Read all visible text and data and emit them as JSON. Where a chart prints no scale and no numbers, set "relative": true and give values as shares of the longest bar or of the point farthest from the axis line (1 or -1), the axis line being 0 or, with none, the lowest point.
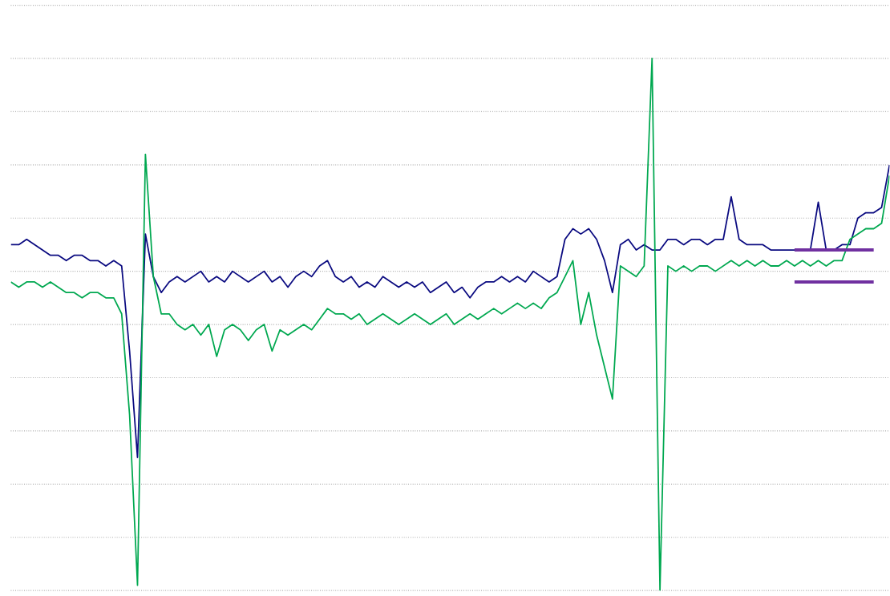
{
  "chart_data": {
    "type": "line",
    "relative": true,
    "grid": "y",
    "tick_labels": false,
    "categories": [
      null,
      null,
      null,
      null,
      null,
      null,
      null,
      null,
      null,
      null,
      null,
      null,
      null,
      null,
      null,
      null,
      null,
      null,
      null,
      null,
      null,
      null,
      null,
      null,
      null,
      null,
      null,
      null,
      null,
      null,
      null,
      null,
      null,
      null,
      null,
      null,
      null,
      null,
      null,
      null,
      null,
      null,
      null,
      null,
      null,
      null,
      null,
      null,
      null,
      null,
      null,
      null,
      null,
      null,
      null,
      null,
      null,
      null,
      null,
      null,
      null,
      null,
      null,
      null,
      null,
      null,
      null,
      null,
      null,
      null,
      null,
      null,
      null,
      null,
      null,
      null,
      null,
      null,
      null,
      null,
      null,
      null,
      null,
      null,
      null,
      null,
      null,
      null,
      null,
      null,
      null,
      null,
      null,
      null,
      null,
      null,
      null,
      null,
      null,
      null,
      null,
      null,
      null,
      null,
      null,
      null,
      null,
      null,
      null,
      null,
      null,
      null
    ],
    "series": [
      {
        "color": "#0a0a80",
        "values": [
          0.65,
          0.65,
          0.66,
          0.65,
          0.64,
          0.63,
          0.63,
          0.62,
          0.63,
          0.63,
          0.62,
          0.62,
          0.61,
          0.62,
          0.61,
          0.45,
          0.25,
          0.67,
          0.59,
          0.56,
          0.58,
          0.59,
          0.58,
          0.59,
          0.6,
          0.58,
          0.59,
          0.58,
          0.6,
          0.59,
          0.58,
          0.59,
          0.6,
          0.58,
          0.59,
          0.57,
          0.59,
          0.6,
          0.59,
          0.61,
          0.62,
          0.59,
          0.58,
          0.59,
          0.57,
          0.58,
          0.57,
          0.59,
          0.58,
          0.57,
          0.58,
          0.57,
          0.58,
          0.56,
          0.57,
          0.58,
          0.56,
          0.57,
          0.55,
          0.57,
          0.58,
          0.58,
          0.59,
          0.58,
          0.59,
          0.58,
          0.6,
          0.59,
          0.58,
          0.59,
          0.66,
          0.68,
          0.67,
          0.68,
          0.66,
          0.62,
          0.56,
          0.65,
          0.66,
          0.64,
          0.65,
          0.64,
          0.64,
          0.66,
          0.66,
          0.65,
          0.66,
          0.66,
          0.65,
          0.66,
          0.66,
          0.74,
          0.66,
          0.65,
          0.65,
          0.65,
          0.64,
          0.64,
          0.64,
          0.64,
          0.64,
          0.64,
          0.73,
          0.64,
          0.64,
          0.65,
          0.65,
          0.7,
          0.71,
          0.71,
          0.72,
          0.8
        ]
      },
      {
        "color": "#00a850",
        "values": [
          0.58,
          0.57,
          0.58,
          0.58,
          0.57,
          0.58,
          0.57,
          0.56,
          0.56,
          0.55,
          0.56,
          0.56,
          0.55,
          0.55,
          0.52,
          0.33,
          0.01,
          0.82,
          0.59,
          0.52,
          0.52,
          0.5,
          0.49,
          0.5,
          0.48,
          0.5,
          0.44,
          0.49,
          0.5,
          0.49,
          0.47,
          0.49,
          0.5,
          0.45,
          0.49,
          0.48,
          0.49,
          0.5,
          0.49,
          0.51,
          0.53,
          0.52,
          0.52,
          0.51,
          0.52,
          0.5,
          0.51,
          0.52,
          0.51,
          0.5,
          0.51,
          0.52,
          0.51,
          0.5,
          0.51,
          0.52,
          0.5,
          0.51,
          0.52,
          0.51,
          0.52,
          0.53,
          0.52,
          0.53,
          0.54,
          0.53,
          0.54,
          0.53,
          0.55,
          0.56,
          0.59,
          0.62,
          0.5,
          0.56,
          0.48,
          0.42,
          0.36,
          0.61,
          0.6,
          0.59,
          0.61,
          1.0,
          0.0,
          0.61,
          0.6,
          0.61,
          0.6,
          0.61,
          0.61,
          0.6,
          0.61,
          0.62,
          0.61,
          0.62,
          0.61,
          0.62,
          0.61,
          0.61,
          0.62,
          0.61,
          0.62,
          0.61,
          0.62,
          0.61,
          0.62,
          0.62,
          0.66,
          0.67,
          0.68,
          0.68,
          0.69,
          0.78
        ]
      },
      {
        "color": "#7030a0",
        "values": [
          null,
          null,
          null,
          null,
          null,
          null,
          null,
          null,
          null,
          null,
          null,
          null,
          null,
          null,
          null,
          null,
          null,
          null,
          null,
          null,
          null,
          null,
          null,
          null,
          null,
          null,
          null,
          null,
          null,
          null,
          null,
          null,
          null,
          null,
          null,
          null,
          null,
          null,
          null,
          null,
          null,
          null,
          null,
          null,
          null,
          null,
          null,
          null,
          null,
          null,
          null,
          null,
          null,
          null,
          null,
          null,
          null,
          null,
          null,
          null,
          null,
          null,
          null,
          null,
          null,
          null,
          null,
          null,
          null,
          null,
          null,
          null,
          null,
          null,
          null,
          null,
          null,
          null,
          null,
          null,
          null,
          null,
          null,
          null,
          null,
          null,
          null,
          null,
          null,
          null,
          null,
          null,
          null,
          null,
          null,
          null,
          null,
          null,
          null,
          0.64,
          0.64,
          0.64,
          0.64,
          0.64,
          0.64,
          0.64,
          0.64,
          0.64,
          0.64,
          0.64,
          null,
          null
        ]
      },
      {
        "color": "#7030a0",
        "values": [
          null,
          null,
          null,
          null,
          null,
          null,
          null,
          null,
          null,
          null,
          null,
          null,
          null,
          null,
          null,
          null,
          null,
          null,
          null,
          null,
          null,
          null,
          null,
          null,
          null,
          null,
          null,
          null,
          null,
          null,
          null,
          null,
          null,
          null,
          null,
          null,
          null,
          null,
          null,
          null,
          null,
          null,
          null,
          null,
          null,
          null,
          null,
          null,
          null,
          null,
          null,
          null,
          null,
          null,
          null,
          null,
          null,
          null,
          null,
          null,
          null,
          null,
          null,
          null,
          null,
          null,
          null,
          null,
          null,
          null,
          null,
          null,
          null,
          null,
          null,
          null,
          null,
          null,
          null,
          null,
          null,
          null,
          null,
          null,
          null,
          null,
          null,
          null,
          null,
          null,
          null,
          null,
          null,
          null,
          null,
          null,
          null,
          null,
          null,
          0.58,
          0.58,
          0.58,
          0.58,
          0.58,
          0.58,
          0.58,
          0.58,
          0.58,
          0.58,
          0.58,
          null,
          null
        ]
      }
    ]
  }
}
